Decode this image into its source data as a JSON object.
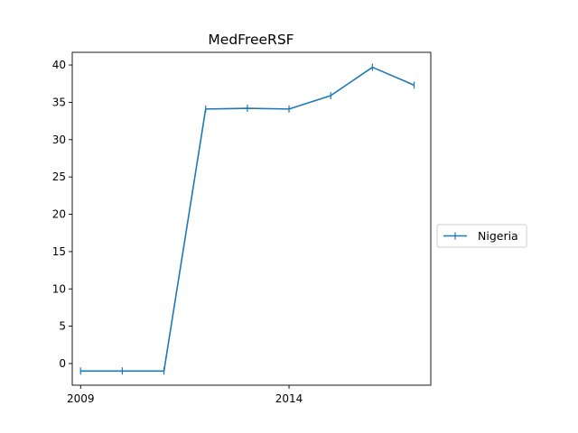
{
  "chart_data": {
    "type": "line",
    "title": "MedFreeRSF",
    "xlabel": "",
    "ylabel": "",
    "x": [
      2009,
      2010,
      2011,
      2012,
      2013,
      2014,
      2015,
      2016,
      2017
    ],
    "series": [
      {
        "name": "Nigeria",
        "values": [
          -1.0,
          -1.0,
          -1.0,
          34.1,
          34.2,
          34.1,
          35.9,
          39.7,
          37.3
        ],
        "color": "#1f77b4",
        "marker": "|"
      }
    ],
    "xticks": [
      2009,
      2014
    ],
    "xtick_labels": [
      "2009",
      "2014"
    ],
    "yticks": [
      0,
      5,
      10,
      15,
      20,
      25,
      30,
      35,
      40
    ],
    "ytick_labels": [
      "0",
      "5",
      "10",
      "15",
      "20",
      "25",
      "30",
      "35",
      "40"
    ],
    "xlim": [
      2008.8,
      2017.4
    ],
    "ylim": [
      -2.9,
      41.7
    ],
    "grid": false,
    "legend_position": "right"
  }
}
